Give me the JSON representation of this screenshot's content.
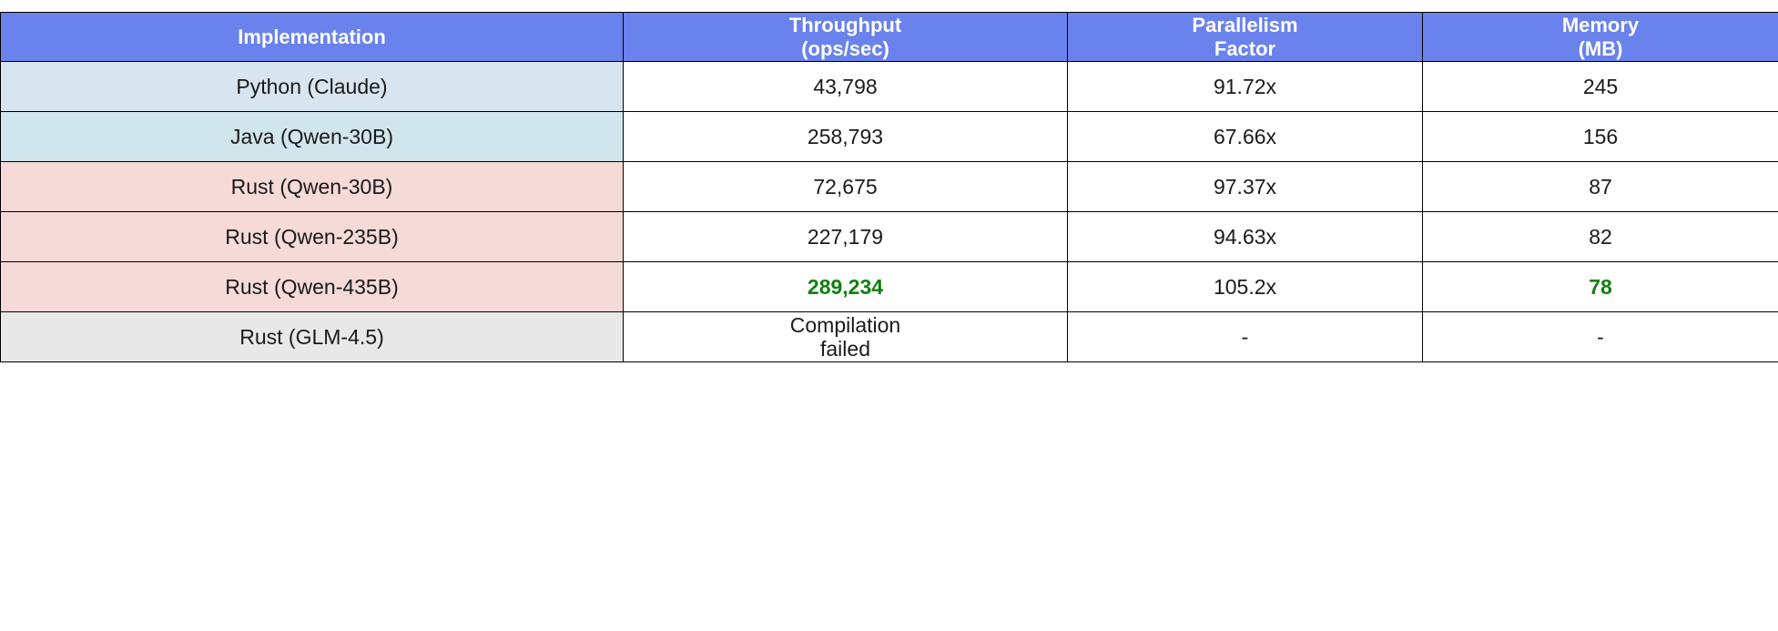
{
  "colors": {
    "header_bg": "#6a82ec",
    "header_text": "#ffffff",
    "best_value": "#108010",
    "cell_text": "#1a1a1a",
    "border": "#000000",
    "row_python": "#d9e5ee",
    "row_java": "#d0e5ec",
    "row_rust": "#f5dad8",
    "row_failed": "#e8e8e8"
  },
  "chart_data": {
    "type": "table",
    "columns": [
      [
        "Implementation"
      ],
      [
        "Throughput",
        "(ops/sec)"
      ],
      [
        "Parallelism",
        "Factor"
      ],
      [
        "Memory",
        "(MB)"
      ]
    ],
    "rows": [
      {
        "implementation": "Python (Claude)",
        "throughput": [
          "43,798"
        ],
        "parallelism": "91.72x",
        "memory": "245",
        "label_color": "#d9e5ee",
        "best_throughput": false,
        "best_memory": false
      },
      {
        "implementation": "Java (Qwen-30B)",
        "throughput": [
          "258,793"
        ],
        "parallelism": "67.66x",
        "memory": "156",
        "label_color": "#d0e5ec",
        "best_throughput": false,
        "best_memory": false
      },
      {
        "implementation": "Rust (Qwen-30B)",
        "throughput": [
          "72,675"
        ],
        "parallelism": "97.37x",
        "memory": "87",
        "label_color": "#f5dad8",
        "best_throughput": false,
        "best_memory": false
      },
      {
        "implementation": "Rust (Qwen-235B)",
        "throughput": [
          "227,179"
        ],
        "parallelism": "94.63x",
        "memory": "82",
        "label_color": "#f5dad8",
        "best_throughput": false,
        "best_memory": false
      },
      {
        "implementation": "Rust (Qwen-435B)",
        "throughput": [
          "289,234"
        ],
        "parallelism": "105.2x",
        "memory": "78",
        "label_color": "#f5dad8",
        "best_throughput": true,
        "best_memory": true
      },
      {
        "implementation": "Rust (GLM-4.5)",
        "throughput": [
          "Compilation",
          "failed"
        ],
        "parallelism": "-",
        "memory": "-",
        "label_color": "#e8e8e8",
        "best_throughput": false,
        "best_memory": false
      }
    ]
  }
}
